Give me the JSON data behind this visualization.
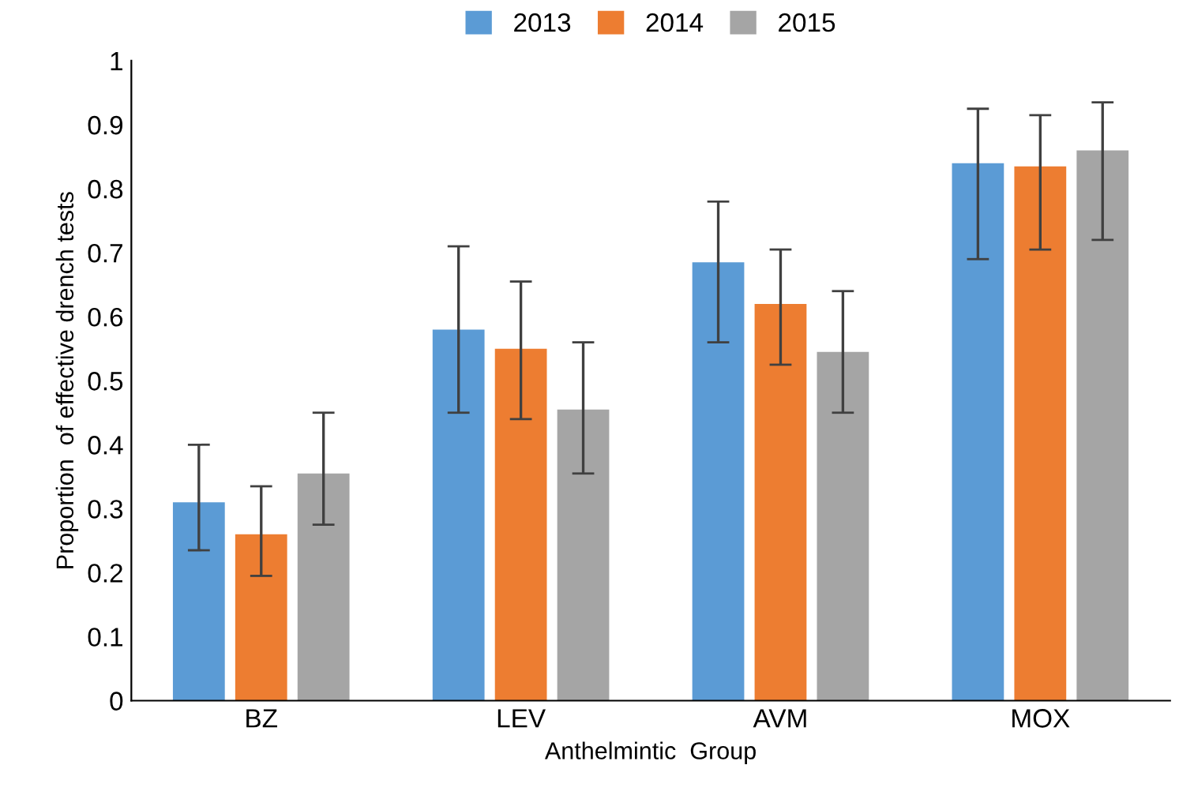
{
  "chart_data": {
    "type": "bar",
    "xlabel": "Anthelmintic  Group",
    "ylabel": "Proportion  of effective drench tests",
    "categories": [
      "BZ",
      "LEV",
      "AVM",
      "MOX"
    ],
    "series": [
      {
        "name": "2013",
        "color": "#5b9bd5",
        "values": [
          0.31,
          0.58,
          0.685,
          0.84
        ],
        "errors": [
          [
            0.235,
            0.4
          ],
          [
            0.45,
            0.71
          ],
          [
            0.56,
            0.78
          ],
          [
            0.69,
            0.925
          ]
        ]
      },
      {
        "name": "2014",
        "color": "#ed7d31",
        "values": [
          0.26,
          0.55,
          0.62,
          0.835
        ],
        "errors": [
          [
            0.195,
            0.335
          ],
          [
            0.44,
            0.655
          ],
          [
            0.525,
            0.705
          ],
          [
            0.705,
            0.915
          ]
        ]
      },
      {
        "name": "2015",
        "color": "#a5a5a5",
        "values": [
          0.355,
          0.455,
          0.545,
          0.86
        ],
        "errors": [
          [
            0.275,
            0.45
          ],
          [
            0.355,
            0.56
          ],
          [
            0.45,
            0.64
          ],
          [
            0.72,
            0.935
          ]
        ]
      }
    ],
    "ylim": [
      0,
      1
    ],
    "yticks": [
      0,
      {
        "value": 0.1,
        "label": "0.1"
      },
      {
        "value": 0.2,
        "label": "0.2"
      },
      {
        "value": 0.3,
        "label": "0.3"
      },
      {
        "value": 0.4,
        "label": "0.4"
      },
      {
        "value": 0.5,
        "label": "0.5"
      },
      {
        "value": 0.6,
        "label": "0.6"
      },
      {
        "value": 0.7,
        "label": "0.7"
      },
      {
        "value": 0.8,
        "label": "0.8"
      },
      {
        "value": 0.9,
        "label": "0.9"
      },
      1
    ],
    "grid": false,
    "legend": "top"
  }
}
